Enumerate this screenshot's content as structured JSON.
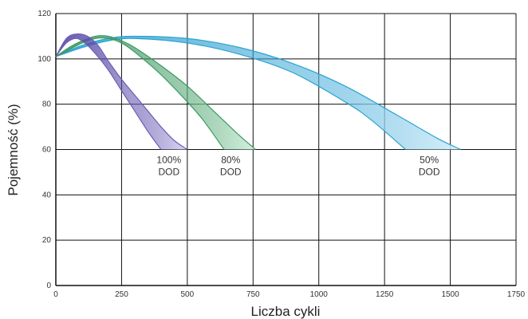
{
  "chart_data": {
    "type": "area",
    "title": "",
    "xlabel": "Liczba cykli",
    "ylabel": "Pojemność (%)",
    "xlim": [
      0,
      1750
    ],
    "ylim": [
      0,
      120
    ],
    "x_ticks": [
      0,
      250,
      500,
      750,
      1000,
      1250,
      1500,
      1750
    ],
    "y_ticks": [
      0,
      20,
      40,
      60,
      80,
      100,
      120
    ],
    "grid": true,
    "legend": "none",
    "series": [
      {
        "name": "100% DOD",
        "label_lines": [
          "100%",
          "DOD"
        ],
        "label_at": [
          430,
          54
        ],
        "color": "#6b5fb5",
        "fill_light": "#d9d4f3",
        "fill_dark": "#5a4aa8",
        "upper": {
          "x": [
            0,
            40,
            80,
            120,
            160,
            200,
            250,
            300,
            350,
            400,
            450,
            500
          ],
          "y": [
            101,
            109,
            111,
            110,
            106,
            99,
            91,
            84,
            77,
            70,
            64,
            60
          ]
        },
        "lower": {
          "x": [
            0,
            40,
            80,
            120,
            160,
            200,
            250,
            300,
            350,
            400
          ],
          "y": [
            101,
            107,
            109,
            106,
            101,
            95,
            86,
            77,
            68,
            60
          ]
        }
      },
      {
        "name": "80% DOD",
        "label_lines": [
          "80%",
          "DOD"
        ],
        "label_at": [
          665,
          54
        ],
        "color": "#3c9a60",
        "fill_light": "#d2efdc",
        "fill_dark": "#3e9a62",
        "upper": {
          "x": [
            0,
            50,
            100,
            150,
            200,
            250,
            300,
            400,
            500,
            600,
            700,
            760
          ],
          "y": [
            101,
            105,
            108,
            110,
            110,
            108,
            105,
            97,
            88,
            77,
            66,
            60
          ]
        },
        "lower": {
          "x": [
            0,
            50,
            100,
            150,
            200,
            250,
            300,
            400,
            500,
            560,
            640
          ],
          "y": [
            101,
            104,
            107,
            109,
            109,
            107,
            103,
            93,
            81,
            73,
            60
          ]
        }
      },
      {
        "name": "50% DOD",
        "label_lines": [
          "50%",
          "DOD"
        ],
        "label_at": [
          1420,
          54
        ],
        "color": "#2ba3cf",
        "fill_light": "#d3eef9",
        "fill_dark": "#3aa6d6",
        "upper": {
          "x": [
            0,
            100,
            200,
            300,
            500,
            700,
            900,
            1100,
            1300,
            1450,
            1540
          ],
          "y": [
            101,
            106,
            109,
            110,
            109,
            105,
            98,
            88,
            75,
            65,
            60
          ]
        },
        "lower": {
          "x": [
            0,
            100,
            200,
            300,
            500,
            700,
            900,
            1100,
            1200,
            1330
          ],
          "y": [
            101,
            105,
            108,
            109,
            107,
            102,
            94,
            81,
            73,
            60
          ]
        }
      }
    ]
  }
}
